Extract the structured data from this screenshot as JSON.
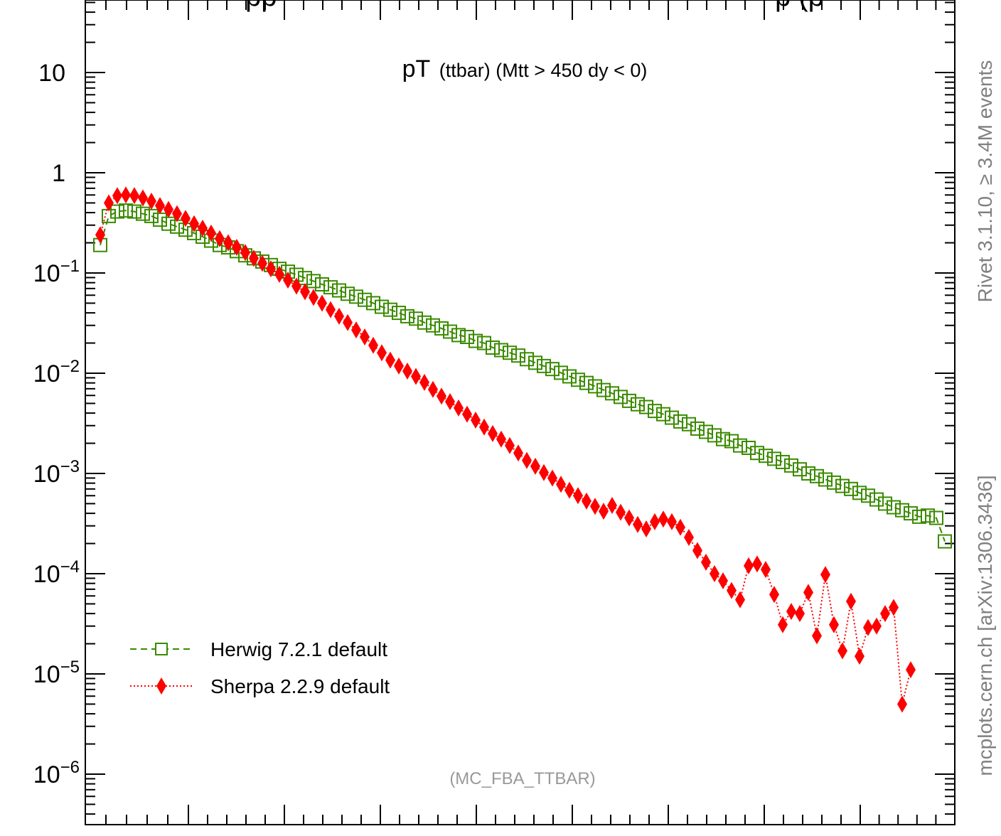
{
  "chart_data": {
    "type": "scatter",
    "title_top_partial": "pp",
    "title_top_partial_right": "p (p",
    "title_main": "pT",
    "title_sub": "(ttbar) (Mtt > 450 dy < 0)",
    "analysis_label": "(MC_FBA_TTBAR)",
    "side_label_top": "Rivet 3.1.10, ≥ 3.4M events",
    "side_label_bottom": "mcplots.cern.ch [arXiv:1306.3436]",
    "y_scale": "log",
    "ylim": [
      3e-07,
      40
    ],
    "xlim": [
      0,
      100
    ],
    "grid": false,
    "legend_position": "bottom-left",
    "y_ticks": [
      {
        "value": 10,
        "base": "10",
        "exp": ""
      },
      {
        "value": 1,
        "base": "1",
        "exp": ""
      },
      {
        "value": 0.1,
        "base": "10",
        "exp": "−1"
      },
      {
        "value": 0.01,
        "base": "10",
        "exp": "−2"
      },
      {
        "value": 0.001,
        "base": "10",
        "exp": "−3"
      },
      {
        "value": 0.0001,
        "base": "10",
        "exp": "−4"
      },
      {
        "value": 1e-05,
        "base": "10",
        "exp": "−5"
      },
      {
        "value": 1e-06,
        "base": "10",
        "exp": "−6"
      }
    ],
    "series": [
      {
        "name": "Herwig 7.2.1 default",
        "color": "#3a8a00",
        "marker": "open-square",
        "line": "dashed",
        "points": [
          [
            1.0,
            0.19
          ],
          [
            2.0,
            0.37
          ],
          [
            3.0,
            0.41
          ],
          [
            4.0,
            0.42
          ],
          [
            5.0,
            0.41
          ],
          [
            6.0,
            0.39
          ],
          [
            7.0,
            0.37
          ],
          [
            8.0,
            0.34
          ],
          [
            9.0,
            0.31
          ],
          [
            10.0,
            0.29
          ],
          [
            11.0,
            0.27
          ],
          [
            12.0,
            0.25
          ],
          [
            13.0,
            0.23
          ],
          [
            14.0,
            0.21
          ],
          [
            15.0,
            0.19
          ],
          [
            16.0,
            0.18
          ],
          [
            17.0,
            0.165
          ],
          [
            18.0,
            0.15
          ],
          [
            19.0,
            0.14
          ],
          [
            20.0,
            0.13
          ],
          [
            21.0,
            0.12
          ],
          [
            22.0,
            0.11
          ],
          [
            23.0,
            0.103
          ],
          [
            24.0,
            0.096
          ],
          [
            25.0,
            0.089
          ],
          [
            26.0,
            0.083
          ],
          [
            27.0,
            0.077
          ],
          [
            28.0,
            0.072
          ],
          [
            29.0,
            0.067
          ],
          [
            30.0,
            0.062
          ],
          [
            31.0,
            0.058
          ],
          [
            32.0,
            0.054
          ],
          [
            33.0,
            0.05
          ],
          [
            34.0,
            0.046
          ],
          [
            35.0,
            0.043
          ],
          [
            36.0,
            0.04
          ],
          [
            37.0,
            0.037
          ],
          [
            38.0,
            0.035
          ],
          [
            39.0,
            0.032
          ],
          [
            40.0,
            0.03
          ],
          [
            41.0,
            0.028
          ],
          [
            42.0,
            0.026
          ],
          [
            43.0,
            0.024
          ],
          [
            44.0,
            0.023
          ],
          [
            45.0,
            0.021
          ],
          [
            46.0,
            0.02
          ],
          [
            47.0,
            0.018
          ],
          [
            48.0,
            0.017
          ],
          [
            49.0,
            0.016
          ],
          [
            50.0,
            0.015
          ],
          [
            51.0,
            0.0138
          ],
          [
            52.0,
            0.0127
          ],
          [
            53.0,
            0.0118
          ],
          [
            54.0,
            0.011
          ],
          [
            55.0,
            0.0101
          ],
          [
            56.0,
            0.0093
          ],
          [
            57.0,
            0.0086
          ],
          [
            58.0,
            0.008
          ],
          [
            59.0,
            0.0074
          ],
          [
            60.0,
            0.0068
          ],
          [
            61.0,
            0.0063
          ],
          [
            62.0,
            0.0058
          ],
          [
            63.0,
            0.0053
          ],
          [
            64.0,
            0.0049
          ],
          [
            65.0,
            0.0046
          ],
          [
            66.0,
            0.0042
          ],
          [
            67.0,
            0.0039
          ],
          [
            68.0,
            0.0036
          ],
          [
            69.0,
            0.0033
          ],
          [
            70.0,
            0.0031
          ],
          [
            71.0,
            0.0028
          ],
          [
            72.0,
            0.0026
          ],
          [
            73.0,
            0.0024
          ],
          [
            74.0,
            0.0022
          ],
          [
            75.0,
            0.0021
          ],
          [
            76.0,
            0.0019
          ],
          [
            77.0,
            0.0018
          ],
          [
            78.0,
            0.0016
          ],
          [
            79.0,
            0.0015
          ],
          [
            80.0,
            0.0014
          ],
          [
            81.0,
            0.0013
          ],
          [
            82.0,
            0.0012
          ],
          [
            83.0,
            0.0011
          ],
          [
            84.0,
            0.001
          ],
          [
            85.0,
            0.00094
          ],
          [
            86.0,
            0.00087
          ],
          [
            87.0,
            0.00081
          ],
          [
            88.0,
            0.00075
          ],
          [
            89.0,
            0.0007
          ],
          [
            90.0,
            0.00064
          ],
          [
            91.0,
            0.0006
          ],
          [
            92.0,
            0.00055
          ],
          [
            93.0,
            0.0005
          ],
          [
            94.0,
            0.00046
          ],
          [
            95.0,
            0.00043
          ],
          [
            96.0,
            0.0004
          ],
          [
            97.0,
            0.00037
          ],
          [
            98.0,
            0.00038
          ],
          [
            99.0,
            0.00036
          ],
          [
            100.0,
            0.00021
          ]
        ]
      },
      {
        "name": "Sherpa 2.2.9 default",
        "color": "#ff0000",
        "marker": "filled-diamond",
        "line": "dotted",
        "points": [
          [
            1.0,
            0.24
          ],
          [
            2.0,
            0.5
          ],
          [
            3.0,
            0.59
          ],
          [
            4.0,
            0.6
          ],
          [
            5.0,
            0.59
          ],
          [
            6.0,
            0.56
          ],
          [
            7.0,
            0.52
          ],
          [
            8.0,
            0.47
          ],
          [
            9.0,
            0.43
          ],
          [
            10.0,
            0.39
          ],
          [
            11.0,
            0.35
          ],
          [
            12.0,
            0.31
          ],
          [
            13.0,
            0.28
          ],
          [
            14.0,
            0.25
          ],
          [
            15.0,
            0.22
          ],
          [
            16.0,
            0.2
          ],
          [
            17.0,
            0.18
          ],
          [
            18.0,
            0.16
          ],
          [
            19.0,
            0.14
          ],
          [
            20.0,
            0.125
          ],
          [
            21.0,
            0.11
          ],
          [
            22.0,
            0.097
          ],
          [
            23.0,
            0.085
          ],
          [
            24.0,
            0.074
          ],
          [
            25.0,
            0.065
          ],
          [
            26.0,
            0.057
          ],
          [
            27.0,
            0.05
          ],
          [
            28.0,
            0.043
          ],
          [
            29.0,
            0.037
          ],
          [
            30.0,
            0.032
          ],
          [
            31.0,
            0.027
          ],
          [
            32.0,
            0.023
          ],
          [
            33.0,
            0.019
          ],
          [
            34.0,
            0.016
          ],
          [
            35.0,
            0.0135
          ],
          [
            36.0,
            0.0118
          ],
          [
            37.0,
            0.0105
          ],
          [
            38.0,
            0.0093
          ],
          [
            39.0,
            0.0081
          ],
          [
            40.0,
            0.0069
          ],
          [
            41.0,
            0.0059
          ],
          [
            42.0,
            0.0052
          ],
          [
            43.0,
            0.0045
          ],
          [
            44.0,
            0.0039
          ],
          [
            45.0,
            0.0034
          ],
          [
            46.0,
            0.0029
          ],
          [
            47.0,
            0.0025
          ],
          [
            48.0,
            0.0022
          ],
          [
            49.0,
            0.0019
          ],
          [
            50.0,
            0.0016
          ],
          [
            51.0,
            0.00135
          ],
          [
            52.0,
            0.00118
          ],
          [
            53.0,
            0.00102
          ],
          [
            54.0,
            0.0009
          ],
          [
            55.0,
            0.00078
          ],
          [
            56.0,
            0.00068
          ],
          [
            57.0,
            0.0006
          ],
          [
            58.0,
            0.00053
          ],
          [
            59.0,
            0.00047
          ],
          [
            60.0,
            0.00042
          ],
          [
            61.0,
            0.00048
          ],
          [
            62.0,
            0.00041
          ],
          [
            63.0,
            0.00036
          ],
          [
            64.0,
            0.00031
          ],
          [
            65.0,
            0.00028
          ],
          [
            66.0,
            0.00033
          ],
          [
            67.0,
            0.00035
          ],
          [
            68.0,
            0.00033
          ],
          [
            69.0,
            0.00029
          ],
          [
            70.0,
            0.00023
          ],
          [
            71.0,
            0.00017
          ],
          [
            72.0,
            0.00013
          ],
          [
            73.0,
            0.0001
          ],
          [
            74.0,
            8.5e-05
          ],
          [
            75.0,
            6.8e-05
          ],
          [
            76.0,
            5.5e-05
          ],
          [
            77.0,
            0.00012
          ],
          [
            78.0,
            0.000125
          ],
          [
            79.0,
            0.00011
          ],
          [
            80.0,
            6.2e-05
          ],
          [
            81.0,
            3.1e-05
          ],
          [
            82.0,
            4.2e-05
          ],
          [
            83.0,
            4e-05
          ],
          [
            84.0,
            6.5e-05
          ],
          [
            85.0,
            2.4e-05
          ],
          [
            86.0,
            9.8e-05
          ],
          [
            87.0,
            3.1e-05
          ],
          [
            88.0,
            1.7e-05
          ],
          [
            89.0,
            5.3e-05
          ],
          [
            90.0,
            1.5e-05
          ],
          [
            91.0,
            2.9e-05
          ],
          [
            92.0,
            3e-05
          ],
          [
            93.0,
            4e-05
          ],
          [
            94.0,
            4.6e-05
          ],
          [
            95.0,
            5e-06
          ],
          [
            96.0,
            1.1e-05
          ]
        ]
      }
    ]
  }
}
